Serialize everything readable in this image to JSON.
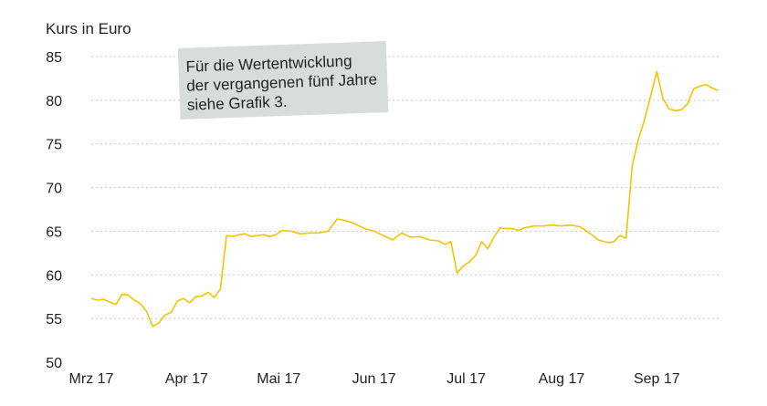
{
  "chart_data": {
    "type": "line",
    "ylabel": "Kurs in Euro",
    "ylim": [
      50,
      85
    ],
    "yticks": [
      50,
      55,
      60,
      65,
      70,
      75,
      80,
      85
    ],
    "xlim": [
      "2017-03-01",
      "2017-09-22"
    ],
    "xticks": [
      {
        "label": "Mrz 17",
        "date": "2017-03-01"
      },
      {
        "label": "Apr 17",
        "date": "2017-04-01"
      },
      {
        "label": "Mai 17",
        "date": "2017-05-01"
      },
      {
        "label": "Jun 17",
        "date": "2017-06-01"
      },
      {
        "label": "Jul 17",
        "date": "2017-07-01"
      },
      {
        "label": "Aug 17",
        "date": "2017-08-01"
      },
      {
        "label": "Sep 17",
        "date": "2017-09-01"
      }
    ],
    "grid": true,
    "annotation": [
      "Für die Wertentwicklung",
      "der vergangenen fünf Jahre",
      "siehe Grafik 3."
    ],
    "series_color": "#f5c400",
    "series": [
      {
        "x": [
          "2017-03-01",
          "2017-03-03",
          "2017-03-05",
          "2017-03-07",
          "2017-03-09",
          "2017-03-11",
          "2017-03-13",
          "2017-03-15",
          "2017-03-17",
          "2017-03-19",
          "2017-03-21",
          "2017-03-23",
          "2017-03-25",
          "2017-03-27",
          "2017-03-29",
          "2017-03-31",
          "2017-04-02",
          "2017-04-04",
          "2017-04-06",
          "2017-04-08",
          "2017-04-10",
          "2017-04-12",
          "2017-04-14",
          "2017-04-16",
          "2017-04-18",
          "2017-04-20",
          "2017-04-22",
          "2017-04-24",
          "2017-04-26",
          "2017-04-28",
          "2017-04-30",
          "2017-05-02",
          "2017-05-05",
          "2017-05-08",
          "2017-05-11",
          "2017-05-14",
          "2017-05-17",
          "2017-05-20",
          "2017-05-23",
          "2017-05-26",
          "2017-05-29",
          "2017-06-01",
          "2017-06-04",
          "2017-06-07",
          "2017-06-10",
          "2017-06-13",
          "2017-06-16",
          "2017-06-19",
          "2017-06-22",
          "2017-06-24",
          "2017-06-26",
          "2017-06-28",
          "2017-06-30",
          "2017-07-02",
          "2017-07-04",
          "2017-07-06",
          "2017-07-08",
          "2017-07-10",
          "2017-07-12",
          "2017-07-14",
          "2017-07-16",
          "2017-07-18",
          "2017-07-20",
          "2017-07-23",
          "2017-07-26",
          "2017-07-29",
          "2017-08-01",
          "2017-08-04",
          "2017-08-07",
          "2017-08-10",
          "2017-08-13",
          "2017-08-16",
          "2017-08-18",
          "2017-08-20",
          "2017-08-22",
          "2017-08-24",
          "2017-08-26",
          "2017-08-28",
          "2017-08-30",
          "2017-09-01",
          "2017-09-03",
          "2017-09-05",
          "2017-09-07",
          "2017-09-09",
          "2017-09-11",
          "2017-09-13",
          "2017-09-15",
          "2017-09-17",
          "2017-09-19",
          "2017-09-21"
        ],
        "y": [
          57.3,
          57.1,
          57.2,
          56.9,
          56.6,
          57.8,
          57.7,
          57.1,
          56.7,
          55.8,
          54.1,
          54.5,
          55.4,
          55.7,
          57.0,
          57.3,
          56.8,
          57.5,
          57.6,
          58.0,
          57.4,
          58.4,
          64.5,
          64.4,
          64.6,
          64.7,
          64.4,
          64.5,
          64.6,
          64.4,
          64.6,
          65.1,
          65.0,
          64.7,
          64.8,
          64.8,
          65.0,
          66.4,
          66.2,
          65.8,
          65.3,
          65.0,
          64.5,
          64.0,
          64.8,
          64.3,
          64.4,
          64.0,
          63.9,
          63.5,
          63.8,
          60.2,
          61.0,
          61.5,
          62.2,
          63.8,
          63.0,
          64.3,
          65.4,
          65.3,
          65.3,
          65.1,
          65.4,
          65.6,
          65.6,
          65.7,
          65.6,
          65.7,
          65.5,
          64.8,
          64.0,
          63.7,
          63.8,
          64.5,
          64.2,
          72.5,
          75.5,
          77.8,
          80.5,
          83.3,
          80.2,
          79.0,
          78.8,
          78.9,
          79.6,
          81.3,
          81.6,
          81.8,
          81.4,
          81.1
        ]
      }
    ]
  }
}
